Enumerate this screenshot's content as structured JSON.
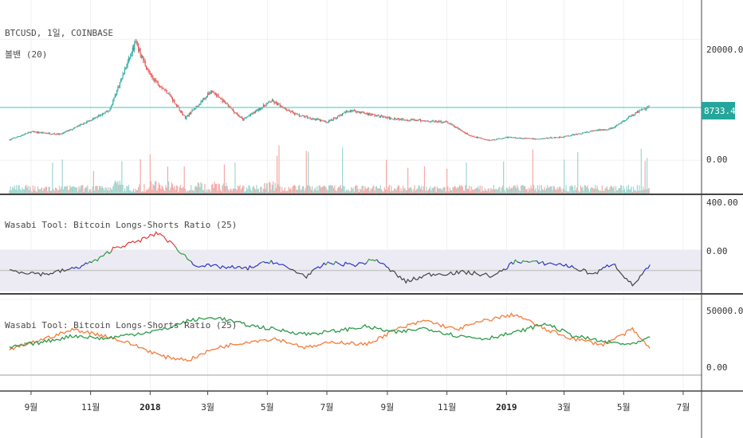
{
  "header": {
    "symbol_line": "BTCUSD, 1일, COINBASE",
    "overlay_line": "볼밴 (20)"
  },
  "price_tag": "8733.44",
  "colors": {
    "up": "#26a69a",
    "down": "#ef5350",
    "price_line": "#4dd0c4",
    "ratio_blue": "#2f35c7",
    "ratio_green": "#2f9e3f",
    "ratio_red": "#e53935",
    "ratio_gray": "#444444",
    "longs": "#2e9a4a",
    "shorts": "#f57c3a",
    "zero_line": "#bdbdbd",
    "sep": "#444444"
  },
  "chart_data": [
    {
      "type": "candlestick",
      "title": "BTCUSD, 1일, COINBASE",
      "subtitle": "볼밴 (20)",
      "x": [
        "2017-08-10",
        "2017-09-01",
        "2017-10-01",
        "2017-11-01",
        "2017-11-20",
        "2017-12-17",
        "2018-01-01",
        "2018-01-20",
        "2018-02-06",
        "2018-03-05",
        "2018-04-06",
        "2018-05-05",
        "2018-06-01",
        "2018-07-01",
        "2018-07-25",
        "2018-09-01",
        "2018-10-01",
        "2018-11-01",
        "2018-11-25",
        "2018-12-15",
        "2019-01-01",
        "2019-02-01",
        "2019-03-01",
        "2019-04-02",
        "2019-04-20",
        "2019-05-14",
        "2019-05-27"
      ],
      "y": [
        3400,
        4700,
        4300,
        6600,
        8200,
        19500,
        14000,
        11000,
        7000,
        11500,
        6700,
        9800,
        7500,
        6300,
        8300,
        7000,
        6600,
        6300,
        4000,
        3300,
        3800,
        3500,
        3900,
        4900,
        5300,
        7900,
        8733.44
      ],
      "current_price": 8733.44,
      "ylim": [
        -5500,
        26500
      ],
      "y_ticks": [
        20000,
        0
      ],
      "volume_note": "volume bars at panel bottom"
    },
    {
      "type": "line",
      "title": "Wasabi Tool: Bitcoin Longs-Shorts Ratio (25)",
      "x": [
        "2017-08-10",
        "2017-09-15",
        "2017-10-15",
        "2017-11-10",
        "2017-11-25",
        "2017-12-17",
        "2018-01-10",
        "2018-02-01",
        "2018-02-15",
        "2018-03-10",
        "2018-04-10",
        "2018-05-05",
        "2018-06-10",
        "2018-07-01",
        "2018-08-01",
        "2018-08-20",
        "2018-09-20",
        "2018-10-15",
        "2018-11-20",
        "2018-12-20",
        "2019-01-10",
        "2019-02-05",
        "2019-03-01",
        "2019-04-01",
        "2019-04-20",
        "2019-05-10",
        "2019-05-27"
      ],
      "y": [
        0,
        -20,
        10,
        60,
        120,
        150,
        200,
        100,
        30,
        20,
        10,
        50,
        -30,
        40,
        30,
        60,
        -60,
        -20,
        -10,
        -30,
        50,
        40,
        30,
        -20,
        40,
        -80,
        20
      ],
      "ylim": [
        -120,
        400
      ],
      "y_ticks": [
        400,
        0
      ]
    },
    {
      "type": "line",
      "title": "Wasabi Tool: Bitcoin Longs-Shorts Ratio (25)",
      "x": [
        "2017-08-10",
        "2017-09-15",
        "2017-10-15",
        "2017-11-15",
        "2017-12-15",
        "2018-01-15",
        "2018-02-10",
        "2018-03-10",
        "2018-04-10",
        "2018-05-10",
        "2018-06-10",
        "2018-07-10",
        "2018-08-10",
        "2018-09-10",
        "2018-10-10",
        "2018-11-10",
        "2018-12-10",
        "2019-01-10",
        "2019-02-10",
        "2019-03-10",
        "2019-04-10",
        "2019-05-10",
        "2019-05-27"
      ],
      "series": [
        {
          "values": [
            18000,
            22000,
            26000,
            24000,
            27000,
            30000,
            36000,
            38000,
            33000,
            30000,
            27000,
            29000,
            32000,
            28000,
            31000,
            26000,
            24000,
            28000,
            34000,
            26000,
            22000,
            20000,
            24000
          ]
        },
        {
          "values": [
            17000,
            24000,
            30000,
            26000,
            20000,
            12000,
            10000,
            18000,
            22000,
            24000,
            18000,
            22000,
            20000,
            30000,
            36000,
            30000,
            36000,
            40000,
            30000,
            24000,
            20000,
            30000,
            18000
          ]
        }
      ],
      "ylim": [
        -10000,
        53000
      ],
      "y_ticks": [
        50000,
        0
      ]
    }
  ],
  "x_axis": {
    "ticks": [
      {
        "label": "9월",
        "date": "2017-09-01",
        "bold": false
      },
      {
        "label": "11월",
        "date": "2017-11-01",
        "bold": false
      },
      {
        "label": "2018",
        "date": "2018-01-01",
        "bold": true
      },
      {
        "label": "3월",
        "date": "2018-03-01",
        "bold": false
      },
      {
        "label": "5월",
        "date": "2018-05-01",
        "bold": false
      },
      {
        "label": "7월",
        "date": "2018-07-01",
        "bold": false
      },
      {
        "label": "9월",
        "date": "2018-09-01",
        "bold": false
      },
      {
        "label": "11월",
        "date": "2018-11-01",
        "bold": false
      },
      {
        "label": "2019",
        "date": "2019-01-01",
        "bold": true
      },
      {
        "label": "3월",
        "date": "2019-03-01",
        "bold": false
      },
      {
        "label": "5월",
        "date": "2019-05-01",
        "bold": false
      },
      {
        "label": "7월",
        "date": "2019-07-01",
        "bold": false
      }
    ]
  },
  "y_labels": {
    "main": [
      "20000.00",
      "0.00"
    ],
    "ratio": [
      "400.00",
      "0.00"
    ],
    "ls": [
      "50000.00",
      "0.00"
    ]
  }
}
